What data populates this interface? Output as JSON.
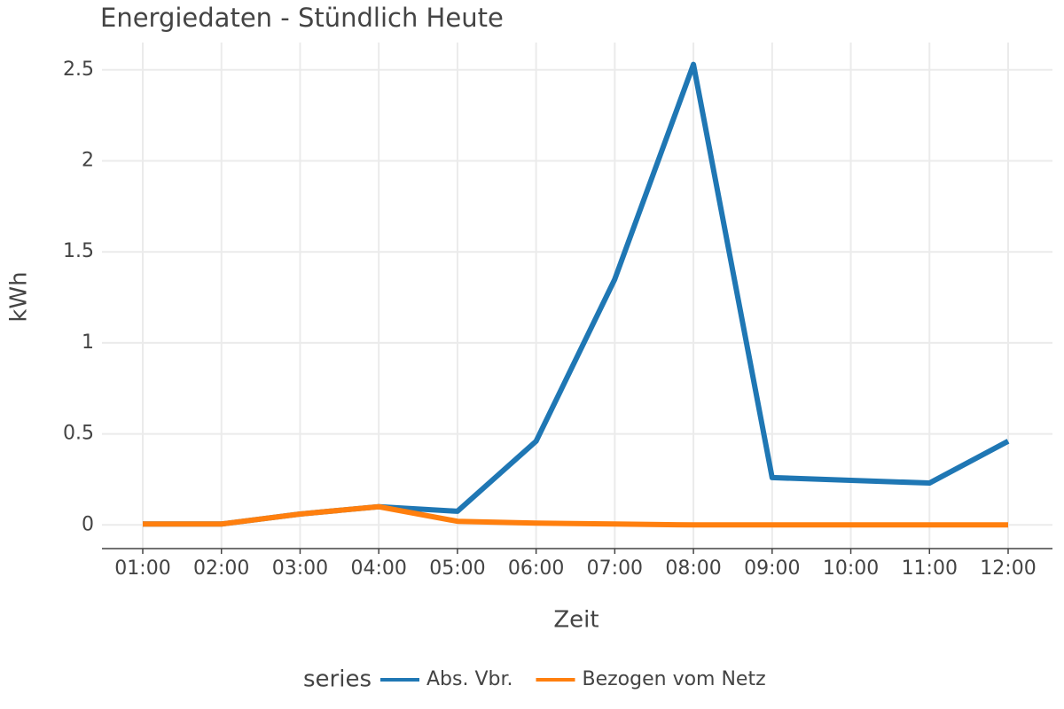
{
  "chart_data": {
    "type": "line",
    "title": "Energiedaten - Stündlich Heute",
    "x_label": "Zeit",
    "y_label": "kWh",
    "categories": [
      "01:00",
      "02:00",
      "03:00",
      "04:00",
      "05:00",
      "06:00",
      "07:00",
      "08:00",
      "09:00",
      "10:00",
      "11:00",
      "12:00"
    ],
    "series": [
      {
        "name": "Abs. Vbr.",
        "color": "#1f77b4",
        "values": [
          0.005,
          0.005,
          0.06,
          0.1,
          0.075,
          0.46,
          1.35,
          2.53,
          0.26,
          0.245,
          0.23,
          0.46
        ]
      },
      {
        "name": "Bezogen vom Netz",
        "color": "#ff7f0e",
        "values": [
          0.005,
          0.005,
          0.06,
          0.1,
          0.02,
          0.01,
          0.005,
          0,
          0,
          0,
          0,
          0
        ]
      }
    ],
    "ylim": [
      -0.13,
      2.65
    ],
    "yticks": [
      0,
      0.5,
      1,
      1.5,
      2,
      2.5
    ],
    "grid": true,
    "legend_title": "series",
    "legend_position": "bottom"
  }
}
